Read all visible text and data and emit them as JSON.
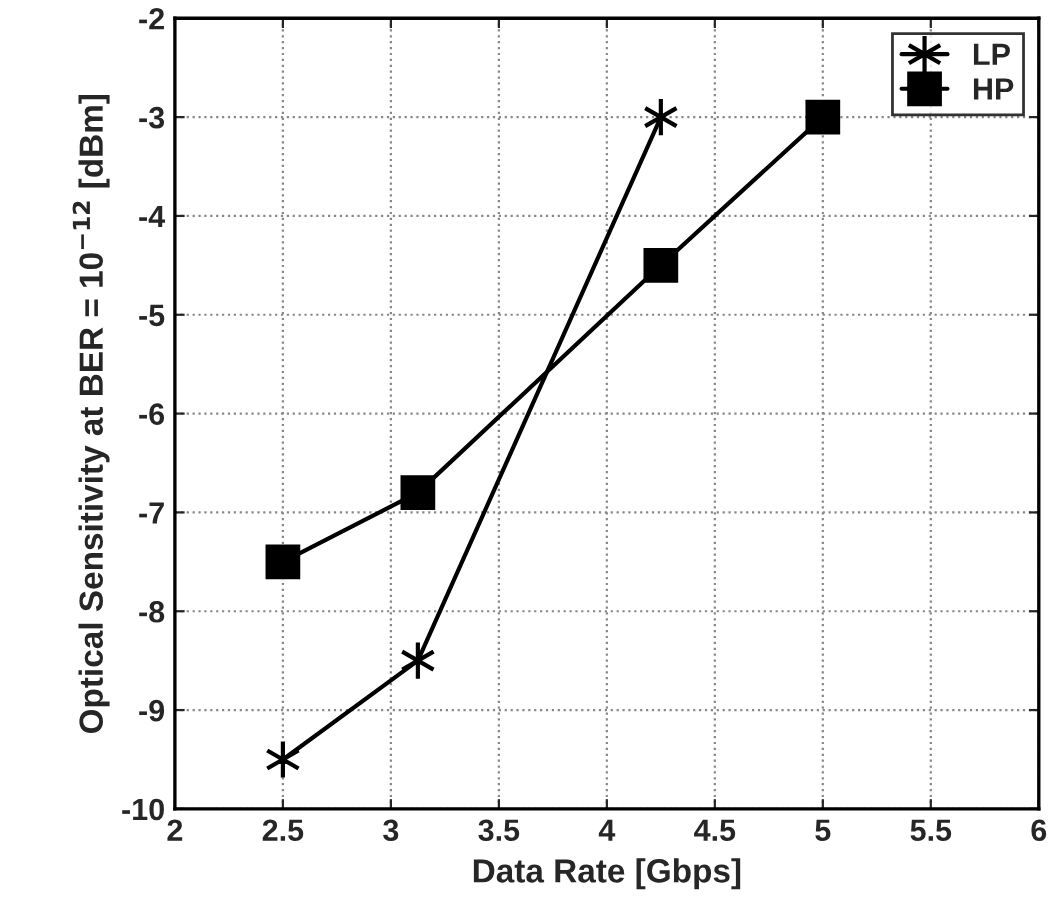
{
  "chart_data": {
    "type": "line",
    "xlabel": "Data Rate [Gbps]",
    "ylabel": "Optical Sensitivity at BER = 10$^{−12}$ [dBm]",
    "series": [
      {
        "name": "LP",
        "color": "#000000",
        "marker": "cross",
        "x": [
          2.5,
          3.125,
          4.25
        ],
        "values": [
          -9.5,
          -8.5,
          -3
        ]
      },
      {
        "name": "HP",
        "color": "#000000",
        "marker": "square",
        "x": [
          2.5,
          3.125,
          4.25,
          5
        ],
        "values": [
          -7.5,
          -6.8,
          -4.5,
          -3
        ]
      }
    ],
    "xlim": [
      2,
      6
    ],
    "xticks": [
      2,
      2.5,
      3,
      3.5,
      4,
      4.5,
      5,
      5.5,
      6
    ],
    "ylim": [
      -10,
      -2
    ],
    "yticks": [
      -10,
      -9,
      -8,
      -7,
      -6,
      -5,
      -4,
      -3,
      -2
    ],
    "grid": true,
    "legend": "top right",
    "line_style": "solid"
  }
}
